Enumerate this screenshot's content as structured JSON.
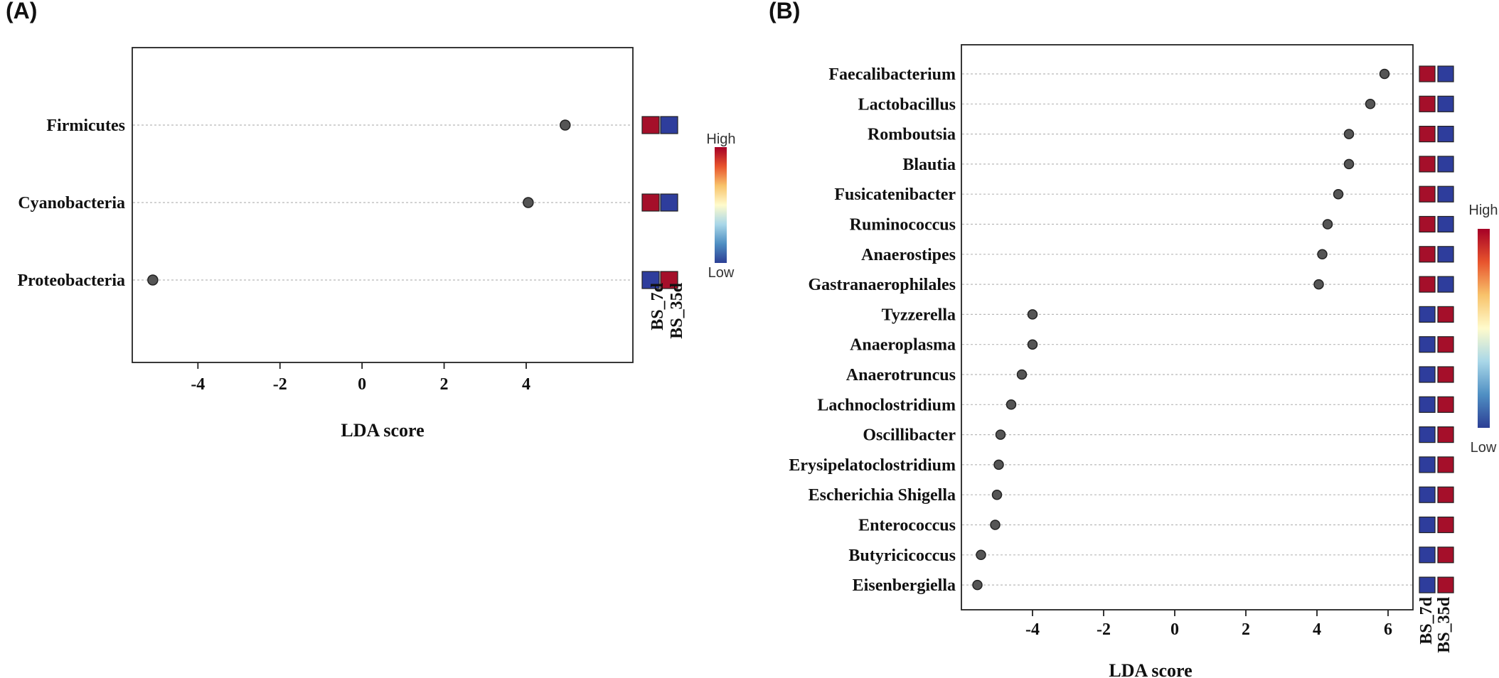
{
  "chart_data": [
    {
      "type": "scatter",
      "panel_label": "(A)",
      "xlabel": "LDA score",
      "ylabel": "",
      "xlim": [
        -5.6,
        6.6
      ],
      "xticks": [
        -4,
        -2,
        0,
        2,
        4
      ],
      "grid": "dotted horizontal lines per taxon",
      "taxa": [
        "Firmicutes",
        "Cyanobacteria",
        "Proteobacteria"
      ],
      "values": [
        4.95,
        4.05,
        -5.1
      ],
      "groups": [
        "BS_7d",
        "BS_35d"
      ],
      "relative_abundance": [
        [
          "high",
          "low"
        ],
        [
          "high",
          "low"
        ],
        [
          "low",
          "high"
        ]
      ],
      "colorbar": {
        "high_label": "High",
        "low_label": "Low"
      }
    },
    {
      "type": "scatter",
      "panel_label": "(B)",
      "xlabel": "LDA score",
      "ylabel": "",
      "xlim": [
        -6.0,
        6.7
      ],
      "xticks": [
        -4,
        -2,
        0,
        2,
        4,
        6
      ],
      "grid": "dotted horizontal lines per taxon",
      "taxa": [
        "Faecalibacterium",
        "Lactobacillus",
        "Romboutsia",
        "Blautia",
        "Fusicatenibacter",
        "Ruminococcus",
        "Anaerostipes",
        "Gastranaerophilales",
        "Tyzzerella",
        "Anaeroplasma",
        "Anaerotruncus",
        "Lachnoclostridium",
        "Oscillibacter",
        "Erysipelatoclostridium",
        "Escherichia Shigella",
        "Enterococcus",
        "Butyricicoccus",
        "Eisenbergiella"
      ],
      "values": [
        5.9,
        5.5,
        4.9,
        4.9,
        4.6,
        4.3,
        4.15,
        4.05,
        -4.0,
        -4.0,
        -4.3,
        -4.6,
        -4.9,
        -4.95,
        -5.0,
        -5.05,
        -5.45,
        -5.55
      ],
      "groups": [
        "BS_7d",
        "BS_35d"
      ],
      "relative_abundance": [
        [
          "high",
          "low"
        ],
        [
          "high",
          "low"
        ],
        [
          "high",
          "low"
        ],
        [
          "high",
          "low"
        ],
        [
          "high",
          "low"
        ],
        [
          "high",
          "low"
        ],
        [
          "high",
          "low"
        ],
        [
          "high",
          "low"
        ],
        [
          "low",
          "high"
        ],
        [
          "low",
          "high"
        ],
        [
          "low",
          "high"
        ],
        [
          "low",
          "high"
        ],
        [
          "low",
          "high"
        ],
        [
          "low",
          "high"
        ],
        [
          "low",
          "high"
        ],
        [
          "low",
          "high"
        ],
        [
          "low",
          "high"
        ],
        [
          "low",
          "high"
        ]
      ],
      "colorbar": {
        "high_label": "High",
        "low_label": "Low"
      }
    }
  ],
  "colors": {
    "high": "#a50f2a",
    "low": "#2e3d9c",
    "point": "#555555",
    "gradient": [
      "#2c3f95",
      "#4f8fc3",
      "#a9d7e8",
      "#fffbcc",
      "#f8c36b",
      "#e8542d",
      "#a50026"
    ]
  }
}
